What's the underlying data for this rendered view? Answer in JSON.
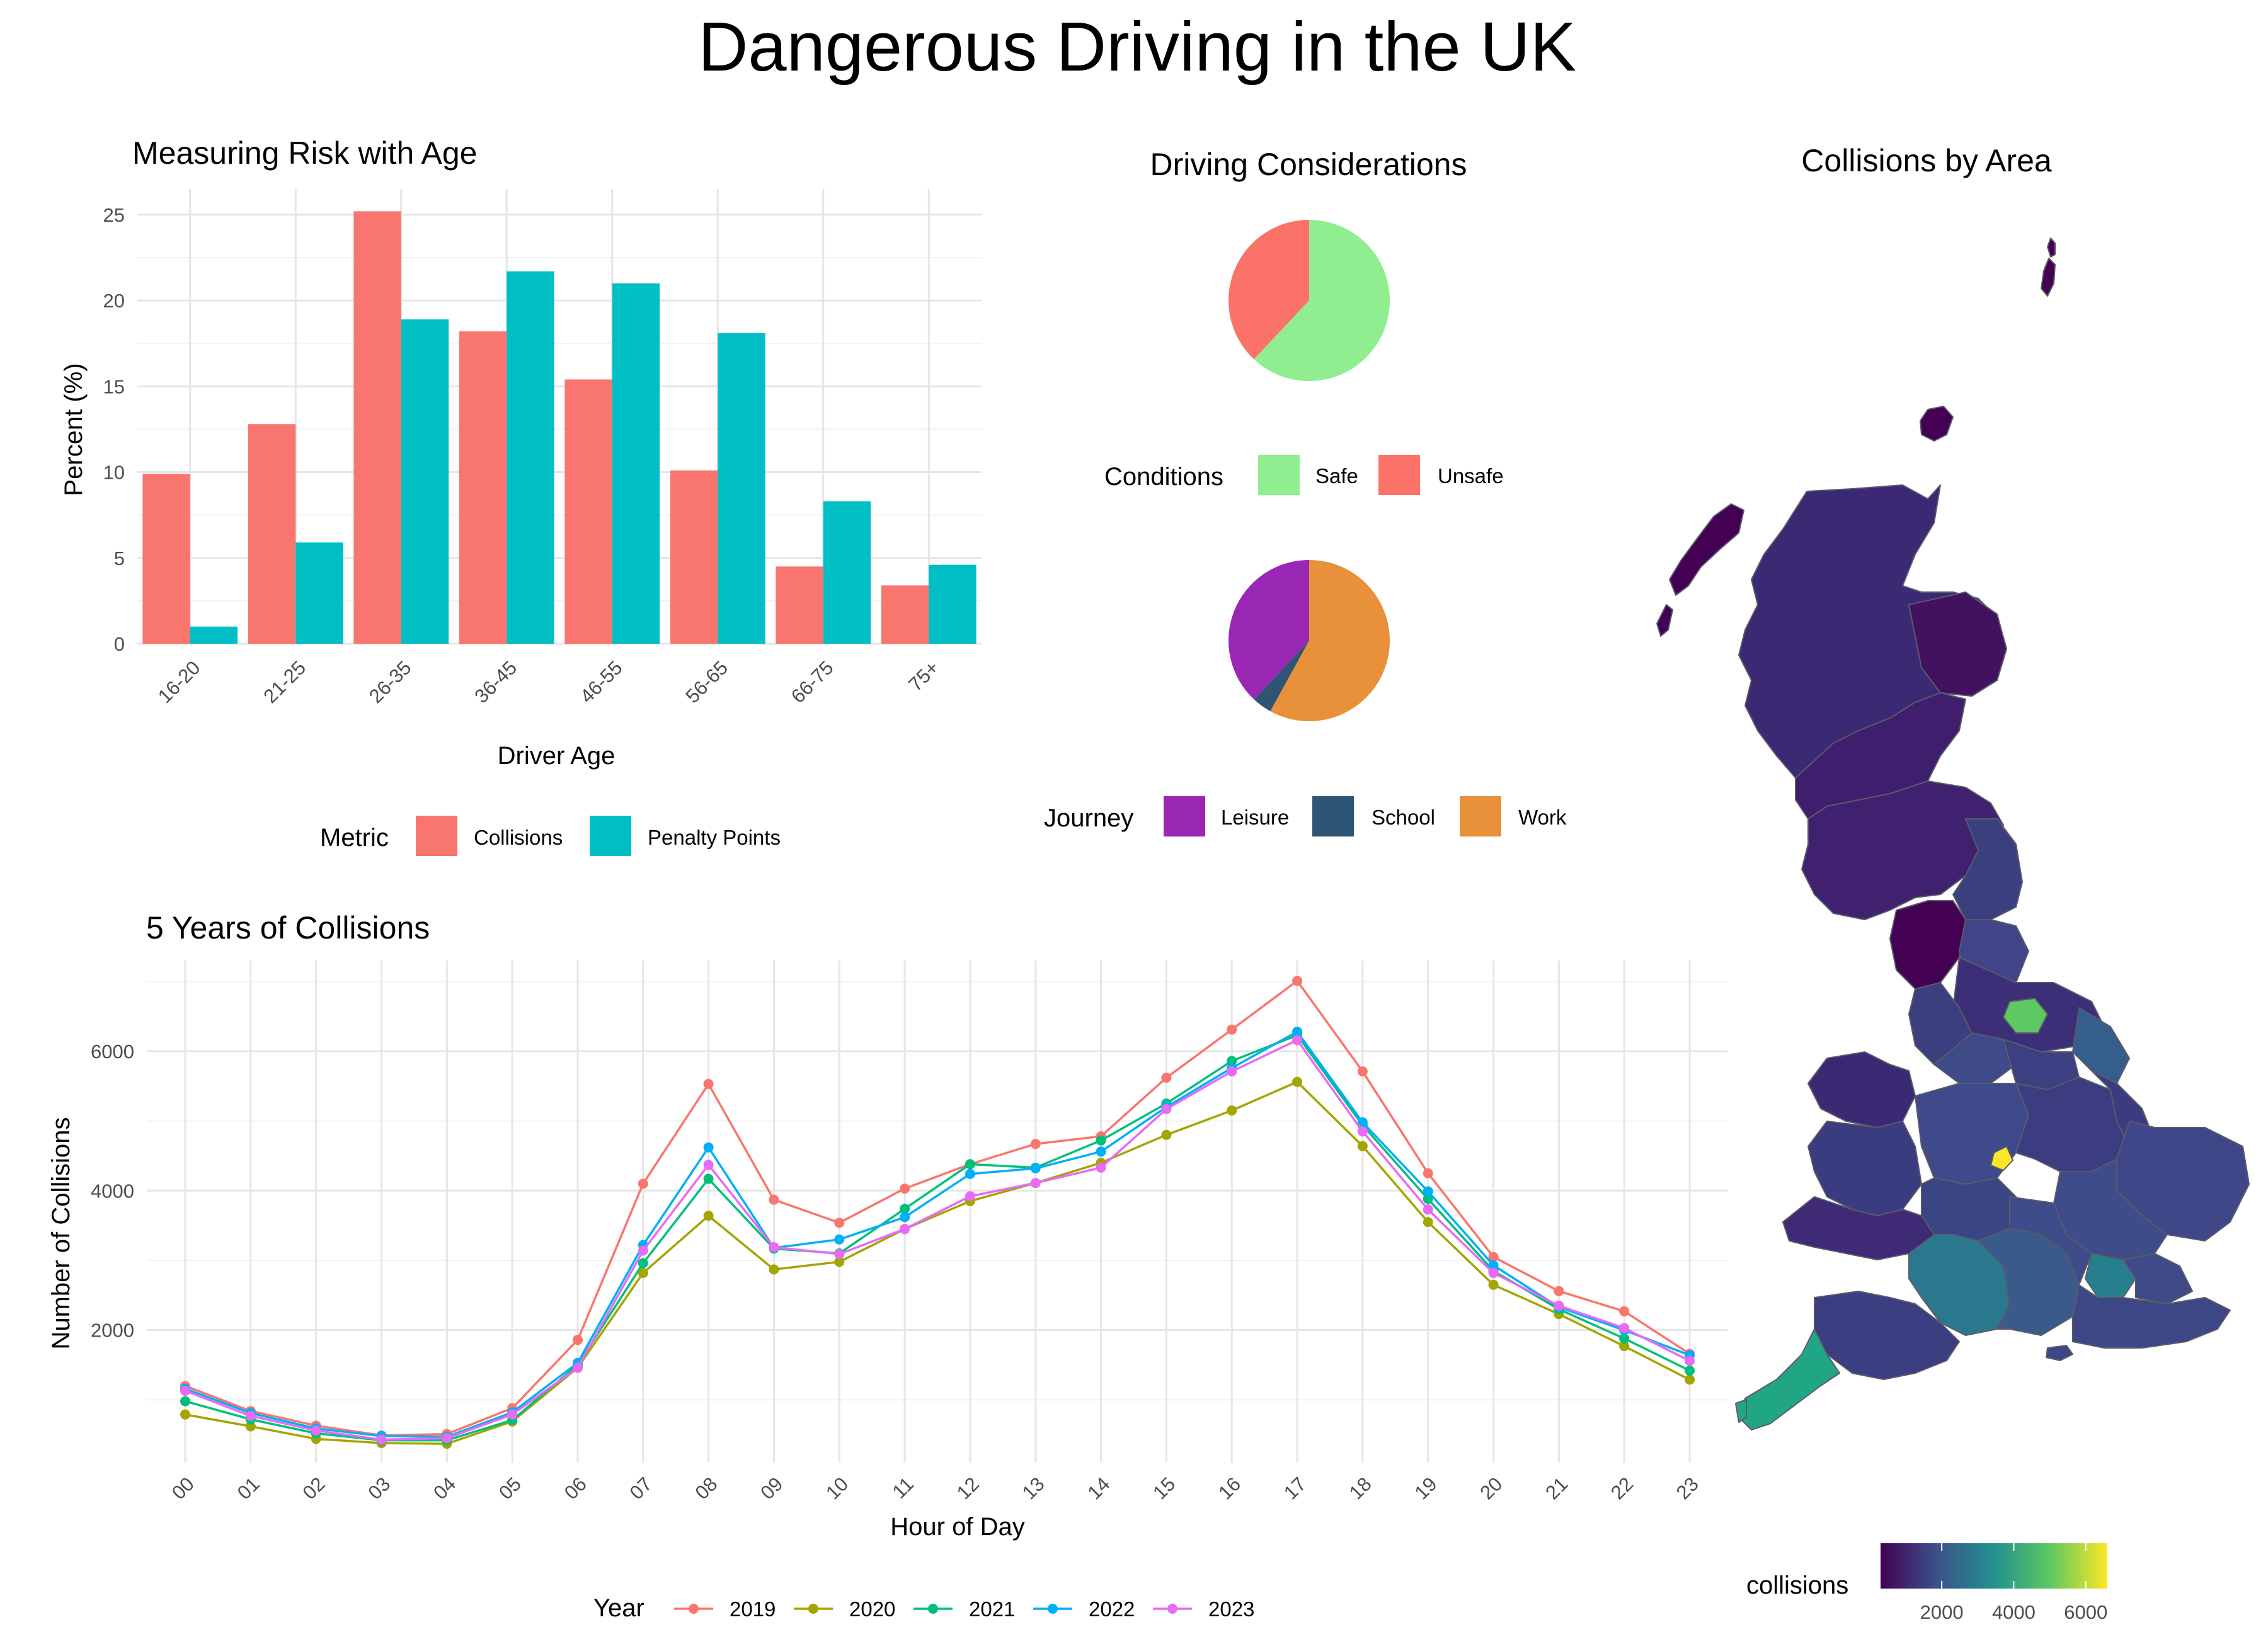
{
  "page": {
    "title": "Dangerous Driving in the UK"
  },
  "chart_data": [
    {
      "type": "bar",
      "title": "Measuring Risk with Age",
      "xlabel": "Driver Age",
      "ylabel": "Percent (%)",
      "categories": [
        "16-20",
        "21-25",
        "26-35",
        "36-45",
        "46-55",
        "56-65",
        "66-75",
        "75+"
      ],
      "series": [
        {
          "name": "Collisions",
          "color": "#F8766D",
          "values": [
            9.9,
            12.8,
            25.2,
            18.2,
            15.4,
            10.1,
            4.5,
            3.4
          ]
        },
        {
          "name": "Penalty Points",
          "color": "#00BFC4",
          "values": [
            1.0,
            5.9,
            18.9,
            21.7,
            21.0,
            18.1,
            8.3,
            4.6
          ]
        }
      ],
      "ylim": [
        0,
        26.5
      ],
      "yticks": [
        0,
        5,
        10,
        15,
        20,
        25
      ],
      "grid": true,
      "legend": {
        "title": "Metric",
        "position": "bottom"
      }
    },
    {
      "type": "pie",
      "title": "Driving Considerations",
      "slices": [
        {
          "label": "Safe",
          "value": 62,
          "color": "#90EE90"
        },
        {
          "label": "Unsafe",
          "value": 38,
          "color": "#FA7268"
        }
      ],
      "legend": {
        "title": "Conditions",
        "position": "bottom"
      }
    },
    {
      "type": "pie",
      "slices": [
        {
          "label": "Work",
          "value": 58,
          "color": "#E8913A"
        },
        {
          "label": "School",
          "value": 4,
          "color": "#2F5575"
        },
        {
          "label": "Leisure",
          "value": 38,
          "color": "#9A27B4"
        }
      ],
      "legend": {
        "title": "Journey",
        "position": "bottom",
        "order": [
          "Leisure",
          "School",
          "Work"
        ]
      }
    },
    {
      "type": "line",
      "title": "5 Years of Collisions",
      "xlabel": "Hour of Day",
      "ylabel": "Number of Collisions",
      "x": [
        "00",
        "01",
        "02",
        "03",
        "04",
        "05",
        "06",
        "07",
        "08",
        "09",
        "10",
        "11",
        "12",
        "13",
        "14",
        "15",
        "16",
        "17",
        "18",
        "19",
        "20",
        "21",
        "22",
        "23"
      ],
      "series": [
        {
          "name": "2019",
          "color": "#F8766D",
          "values": [
            1200,
            840,
            630,
            490,
            510,
            880,
            1860,
            4100,
            5530,
            3870,
            3540,
            4030,
            4380,
            4670,
            4780,
            5620,
            6310,
            7010,
            5710,
            4250,
            3050,
            2560,
            2270,
            1660
          ]
        },
        {
          "name": "2020",
          "color": "#A3A500",
          "values": [
            790,
            620,
            440,
            380,
            370,
            690,
            1460,
            2820,
            3640,
            2870,
            2980,
            3450,
            3850,
            4110,
            4400,
            4800,
            5150,
            5560,
            4640,
            3550,
            2650,
            2230,
            1770,
            1290
          ]
        },
        {
          "name": "2021",
          "color": "#00BF7D",
          "values": [
            980,
            720,
            520,
            420,
            420,
            710,
            1500,
            2960,
            4170,
            3170,
            3100,
            3740,
            4380,
            4330,
            4720,
            5250,
            5860,
            6230,
            4940,
            3880,
            2850,
            2300,
            1880,
            1420
          ]
        },
        {
          "name": "2022",
          "color": "#00B0F6",
          "values": [
            1160,
            810,
            590,
            480,
            470,
            820,
            1530,
            3220,
            4620,
            3180,
            3300,
            3620,
            4240,
            4320,
            4560,
            5200,
            5760,
            6280,
            4980,
            3990,
            2930,
            2330,
            2000,
            1640
          ]
        },
        {
          "name": "2023",
          "color": "#E76BF3",
          "values": [
            1130,
            770,
            560,
            430,
            450,
            790,
            1460,
            3140,
            4370,
            3190,
            3090,
            3450,
            3920,
            4110,
            4330,
            5170,
            5710,
            6160,
            4850,
            3730,
            2820,
            2350,
            2030,
            1560
          ]
        }
      ],
      "ylim": [
        100,
        7300
      ],
      "yticks": [
        2000,
        4000,
        6000
      ],
      "grid": true,
      "legend": {
        "title": "Year",
        "position": "bottom"
      }
    },
    {
      "type": "heatmap",
      "title": "Collisions by Area",
      "legend": {
        "title": "collisions",
        "position": "bottom-right",
        "ticks": [
          2000,
          4000,
          6000
        ],
        "range": [
          300,
          6600
        ]
      }
    }
  ]
}
